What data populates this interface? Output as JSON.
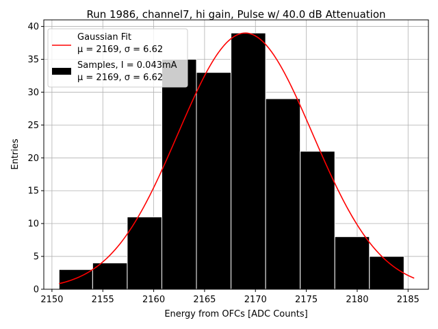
{
  "chart_data": {
    "type": "bar",
    "title": "Run 1986, channel7, hi gain, Pulse w/ 40.0 dB Attenuation",
    "xlabel": "Energy from OFCs [ADC Counts]",
    "ylabel": "Entries",
    "xlim": [
      2149.2,
      2187.0
    ],
    "ylim": [
      0,
      41
    ],
    "xticks": [
      2150,
      2155,
      2160,
      2165,
      2170,
      2175,
      2180,
      2185
    ],
    "yticks": [
      0,
      5,
      10,
      15,
      20,
      25,
      30,
      35,
      40
    ],
    "grid": true,
    "legend_position": "top-left",
    "bins": [
      {
        "x0": 2150.7,
        "x1": 2154.0,
        "count": 3
      },
      {
        "x0": 2154.0,
        "x1": 2157.4,
        "count": 4
      },
      {
        "x0": 2157.4,
        "x1": 2160.8,
        "count": 11
      },
      {
        "x0": 2160.8,
        "x1": 2164.2,
        "count": 35
      },
      {
        "x0": 2164.2,
        "x1": 2167.6,
        "count": 33
      },
      {
        "x0": 2167.6,
        "x1": 2171.0,
        "count": 39
      },
      {
        "x0": 2171.0,
        "x1": 2174.4,
        "count": 29
      },
      {
        "x0": 2174.4,
        "x1": 2177.8,
        "count": 21
      },
      {
        "x0": 2177.8,
        "x1": 2181.2,
        "count": 8
      },
      {
        "x0": 2181.2,
        "x1": 2184.6,
        "count": 5
      }
    ],
    "series": [
      {
        "name": "Gaussian Fit",
        "stats": "μ = 2169, σ = 6.62",
        "kind": "line",
        "color": "#ff0000",
        "x": [
          2150.7,
          2185.6
        ],
        "mu": 2169,
        "sigma": 6.62,
        "amplitude": 39
      },
      {
        "name": "Samples, I = 0.043mA",
        "stats": "μ = 2169, σ = 6.62",
        "kind": "histogram",
        "color": "#000000"
      }
    ]
  }
}
